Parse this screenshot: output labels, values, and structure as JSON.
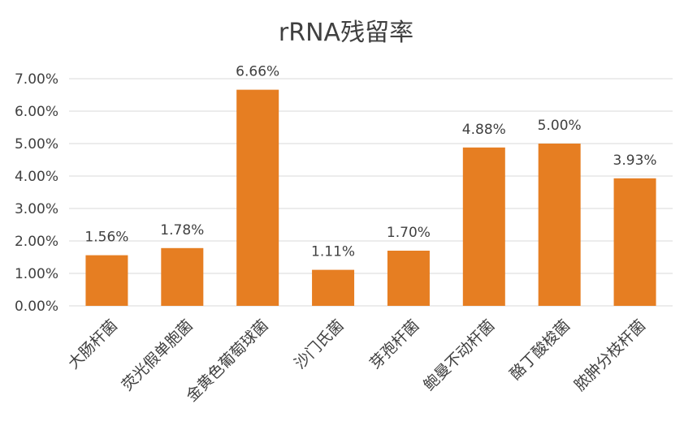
{
  "chart_data": {
    "type": "bar",
    "title": "rRNA残留率",
    "categories": [
      "大肠杆菌",
      "荧光假单胞菌",
      "金黄色葡萄球菌",
      "沙门氏菌",
      "芽孢杆菌",
      "鲍曼不动杆菌",
      "酪丁酸梭菌",
      "脓肿分枝杆菌"
    ],
    "values": [
      1.56,
      1.78,
      6.66,
      1.11,
      1.7,
      4.88,
      5.0,
      3.93
    ],
    "value_labels": [
      "1.56%",
      "1.78%",
      "6.66%",
      "1.11%",
      "1.70%",
      "4.88%",
      "5.00%",
      "3.93%"
    ],
    "y_ticks": [
      0,
      1,
      2,
      3,
      4,
      5,
      6,
      7
    ],
    "y_tick_labels": [
      "0.00%",
      "1.00%",
      "2.00%",
      "3.00%",
      "4.00%",
      "5.00%",
      "6.00%",
      "7.00%"
    ],
    "ylim": [
      0,
      7
    ],
    "xlabel": "",
    "ylabel": "",
    "grid": true,
    "legend": "none",
    "bar_color": "#E67E22"
  }
}
